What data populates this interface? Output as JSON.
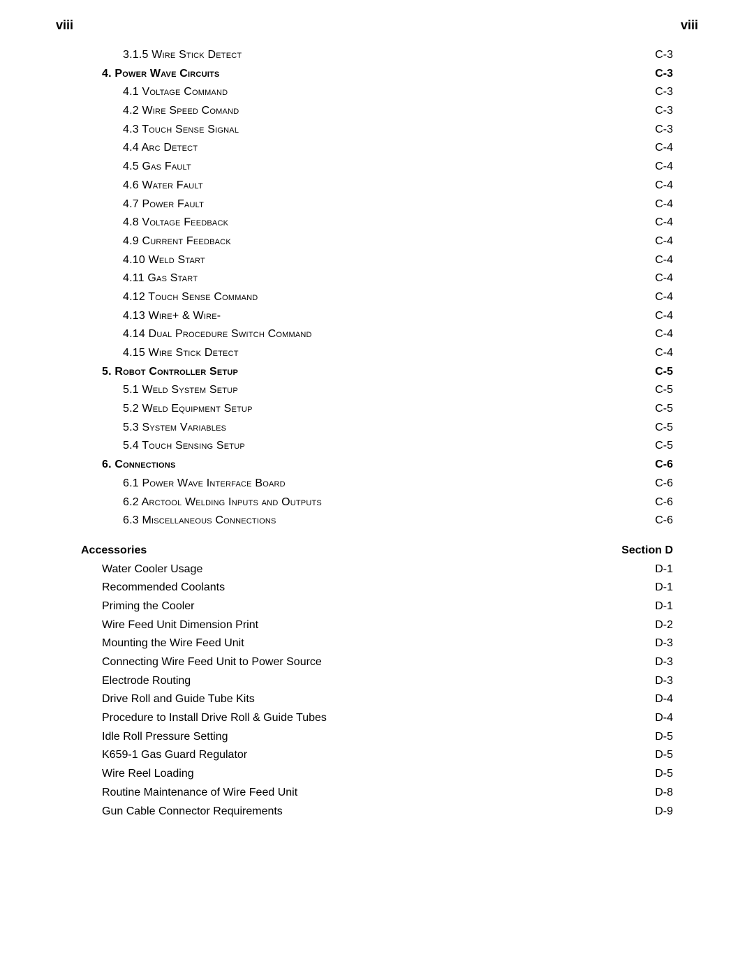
{
  "header": {
    "left": "viii",
    "right": "viii"
  },
  "rows": [
    {
      "indent": 2,
      "bold": false,
      "sc": true,
      "label": "3.1.5 Wire Stick Detect",
      "page": "C-3"
    },
    {
      "indent": 1,
      "bold": true,
      "sc": true,
      "label": "4. Power Wave Circuits",
      "page": "C-3"
    },
    {
      "indent": 2,
      "bold": false,
      "sc": true,
      "label": "4.1 Voltage Command",
      "page": "C-3"
    },
    {
      "indent": 2,
      "bold": false,
      "sc": true,
      "label": "4.2 Wire Speed Comand",
      "page": "C-3"
    },
    {
      "indent": 2,
      "bold": false,
      "sc": true,
      "label": "4.3 Touch Sense Signal",
      "page": "C-3"
    },
    {
      "indent": 2,
      "bold": false,
      "sc": true,
      "label": "4.4 Arc Detect",
      "page": "C-4"
    },
    {
      "indent": 2,
      "bold": false,
      "sc": true,
      "label": "4.5 Gas Fault",
      "page": "C-4"
    },
    {
      "indent": 2,
      "bold": false,
      "sc": true,
      "label": "4.6 Water Fault",
      "page": "C-4"
    },
    {
      "indent": 2,
      "bold": false,
      "sc": true,
      "label": "4.7 Power Fault",
      "page": "C-4"
    },
    {
      "indent": 2,
      "bold": false,
      "sc": true,
      "label": "4.8 Voltage Feedback",
      "page": "C-4"
    },
    {
      "indent": 2,
      "bold": false,
      "sc": true,
      "label": "4.9 Current Feedback",
      "page": "C-4"
    },
    {
      "indent": 2,
      "bold": false,
      "sc": true,
      "label": "4.10 Weld Start",
      "page": "C-4"
    },
    {
      "indent": 2,
      "bold": false,
      "sc": true,
      "label": "4.11 Gas Start",
      "page": "C-4"
    },
    {
      "indent": 2,
      "bold": false,
      "sc": true,
      "label": "4.12 Touch Sense Command",
      "page": "C-4"
    },
    {
      "indent": 2,
      "bold": false,
      "sc": true,
      "label": "4.13 Wire+ & Wire-",
      "page": "C-4"
    },
    {
      "indent": 2,
      "bold": false,
      "sc": true,
      "label": "4.14 Dual Procedure Switch Command",
      "page": "C-4"
    },
    {
      "indent": 2,
      "bold": false,
      "sc": true,
      "label": "4.15 Wire Stick Detect",
      "page": "C-4"
    },
    {
      "indent": 1,
      "bold": true,
      "sc": true,
      "label": "5. Robot Controller Setup",
      "page": "C-5"
    },
    {
      "indent": 2,
      "bold": false,
      "sc": true,
      "label": "5.1 Weld System Setup",
      "page": "C-5"
    },
    {
      "indent": 2,
      "bold": false,
      "sc": true,
      "label": "5.2 Weld Equipment Setup",
      "page": "C-5"
    },
    {
      "indent": 2,
      "bold": false,
      "sc": true,
      "label": "5.3 System Variables",
      "page": "C-5"
    },
    {
      "indent": 2,
      "bold": false,
      "sc": true,
      "label": "5.4 Touch Sensing Setup",
      "page": "C-5"
    },
    {
      "indent": 1,
      "bold": true,
      "sc": true,
      "label": "6. Connections",
      "page": "C-6"
    },
    {
      "indent": 2,
      "bold": false,
      "sc": true,
      "label": "6.1 Power Wave Interface Board",
      "page": "C-6"
    },
    {
      "indent": 2,
      "bold": false,
      "sc": true,
      "label": "6.2 Arctool Welding Inputs and Outputs",
      "page": "C-6"
    },
    {
      "indent": 2,
      "bold": false,
      "sc": true,
      "label": "6.3 Miscellaneous Connections",
      "page": "C-6"
    },
    {
      "gap": true
    },
    {
      "indent": 0,
      "bold": true,
      "sc": false,
      "label": "Accessories",
      "page": "Section D"
    },
    {
      "indent": 1,
      "bold": false,
      "sc": false,
      "label": "Water Cooler Usage",
      "page": "D-1"
    },
    {
      "indent": 1,
      "bold": false,
      "sc": false,
      "label": "Recommended Coolants",
      "page": "D-1"
    },
    {
      "indent": 1,
      "bold": false,
      "sc": false,
      "label": "Priming the Cooler",
      "page": "D-1"
    },
    {
      "indent": 1,
      "bold": false,
      "sc": false,
      "label": "Wire Feed Unit Dimension Print",
      "page": "D-2"
    },
    {
      "indent": 1,
      "bold": false,
      "sc": false,
      "label": "Mounting the Wire Feed Unit",
      "page": "D-3"
    },
    {
      "indent": 1,
      "bold": false,
      "sc": false,
      "label": "Connecting Wire Feed Unit to Power Source",
      "page": "D-3"
    },
    {
      "indent": 1,
      "bold": false,
      "sc": false,
      "label": "Electrode Routing",
      "page": "D-3"
    },
    {
      "indent": 1,
      "bold": false,
      "sc": false,
      "label": "Drive Roll and Guide Tube Kits",
      "page": "D-4"
    },
    {
      "indent": 1,
      "bold": false,
      "sc": false,
      "label": "Procedure to Install Drive Roll & Guide Tubes",
      "page": "D-4"
    },
    {
      "indent": 1,
      "bold": false,
      "sc": false,
      "label": "Idle Roll Pressure Setting",
      "page": "D-5"
    },
    {
      "indent": 1,
      "bold": false,
      "sc": false,
      "label": "K659-1 Gas Guard Regulator",
      "page": "D-5"
    },
    {
      "indent": 1,
      "bold": false,
      "sc": false,
      "label": "Wire Reel Loading",
      "page": "D-5"
    },
    {
      "indent": 1,
      "bold": false,
      "sc": false,
      "label": "Routine Maintenance of Wire Feed Unit",
      "page": "D-8"
    },
    {
      "indent": 1,
      "bold": false,
      "sc": false,
      "label": "Gun Cable Connector Requirements",
      "page": "D-9"
    }
  ]
}
